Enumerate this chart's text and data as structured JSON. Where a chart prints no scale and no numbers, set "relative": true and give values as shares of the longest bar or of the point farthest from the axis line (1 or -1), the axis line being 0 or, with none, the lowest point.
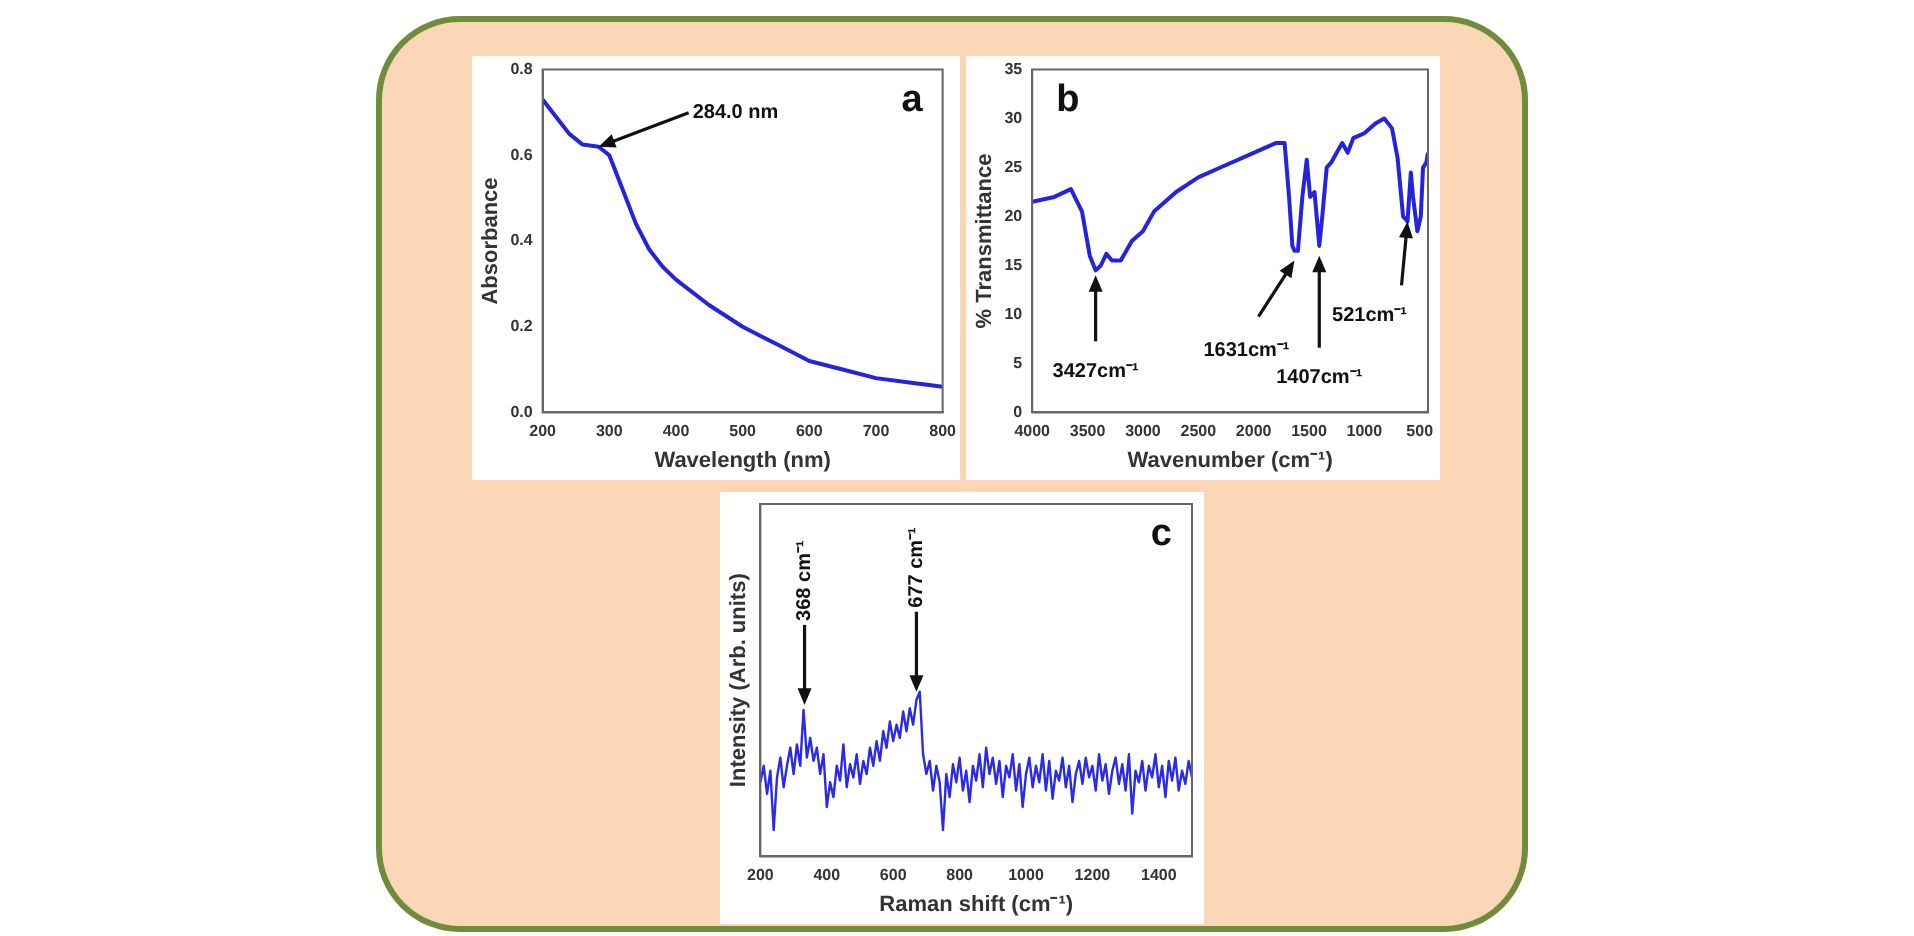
{
  "chart_data": [
    {
      "type": "line",
      "xlabel": "Wavelength (nm)",
      "ylabel": "Absorbance",
      "xlim": [
        200,
        800
      ],
      "xticks": [
        200,
        300,
        400,
        500,
        600,
        700,
        800
      ],
      "ylim": [
        0,
        0.8
      ],
      "yticks": [
        {
          "value": 0,
          "label": "0.0"
        },
        0.2,
        0.4,
        0.6,
        0.8
      ],
      "legend": false,
      "x": [
        200,
        220,
        240,
        260,
        284,
        300,
        320,
        340,
        360,
        380,
        400,
        450,
        500,
        550,
        600,
        650,
        700,
        750,
        800
      ],
      "series": [
        {
          "color": "#2424e0",
          "values": [
            0.73,
            0.69,
            0.65,
            0.625,
            0.62,
            0.6,
            0.52,
            0.44,
            0.38,
            0.34,
            0.31,
            0.25,
            0.2,
            0.16,
            0.12,
            0.1,
            0.08,
            0.07,
            0.06
          ]
        }
      ],
      "annotations": [
        "a",
        {
          "text": "284.0 nm",
          "x": 284,
          "y": 0.62
        }
      ]
    },
    {
      "type": "line",
      "xlabel": "Wavenumber (cm⁻¹)",
      "ylabel": "% Transmittance",
      "xlim": [
        4000,
        425
      ],
      "xticks": [
        4000,
        3500,
        3000,
        2500,
        2000,
        1500,
        1000,
        500
      ],
      "ylim": [
        0,
        35
      ],
      "yticks": [
        0,
        5,
        10,
        15,
        20,
        25,
        30,
        35
      ],
      "legend": false,
      "x": [
        4000,
        3800,
        3650,
        3550,
        3480,
        3427,
        3380,
        3330,
        3280,
        3200,
        3100,
        3000,
        2900,
        2800,
        2700,
        2500,
        2300,
        2000,
        1800,
        1720,
        1680,
        1650,
        1631,
        1600,
        1560,
        1520,
        1490,
        1450,
        1407,
        1380,
        1340,
        1300,
        1250,
        1200,
        1150,
        1100,
        1000,
        900,
        820,
        750,
        700,
        650,
        610,
        580,
        560,
        521,
        490,
        470,
        440,
        425
      ],
      "series": [
        {
          "color": "#2424e0",
          "values": [
            21.5,
            22,
            22.8,
            20.5,
            16,
            14.5,
            15,
            16.2,
            15.5,
            15.5,
            17.5,
            18.5,
            20.5,
            21.5,
            22.5,
            24,
            25,
            26.5,
            27.5,
            27.5,
            22,
            17,
            16.5,
            16.5,
            22,
            25.8,
            22,
            22.5,
            17,
            20,
            25,
            25.5,
            26.5,
            27.5,
            26.5,
            28,
            28.5,
            29.5,
            30,
            29,
            26,
            20,
            19.5,
            24.5,
            22,
            18.5,
            20,
            25,
            25.5,
            26.5
          ]
        }
      ],
      "annotations": [
        "b",
        {
          "text": "3427cm⁻¹",
          "x": 3427,
          "y": 14
        },
        {
          "text": "1631cm⁻¹",
          "x": 1631,
          "y": 15.5
        },
        {
          "text": "1407cm⁻¹",
          "x": 1407,
          "y": 16
        },
        {
          "text": "521cm⁻¹",
          "x": 610,
          "y": 19.5
        }
      ]
    },
    {
      "type": "line",
      "xlabel": "Raman shift (cm⁻¹)",
      "ylabel": "Intensity (Arb. units)",
      "relative": true,
      "xlim": [
        200,
        1500
      ],
      "xticks": [
        200,
        400,
        600,
        800,
        1000,
        1200,
        1400
      ],
      "legend": false,
      "x": [
        200,
        210,
        220,
        230,
        240,
        250,
        260,
        270,
        280,
        290,
        300,
        310,
        320,
        330,
        340,
        350,
        360,
        370,
        380,
        390,
        400,
        410,
        420,
        430,
        440,
        450,
        460,
        470,
        480,
        490,
        500,
        510,
        520,
        530,
        540,
        550,
        560,
        570,
        580,
        590,
        600,
        610,
        620,
        630,
        640,
        650,
        660,
        670,
        680,
        690,
        700,
        710,
        720,
        730,
        740,
        750,
        760,
        770,
        780,
        790,
        800,
        810,
        820,
        830,
        840,
        850,
        860,
        870,
        880,
        890,
        900,
        910,
        920,
        930,
        940,
        950,
        960,
        970,
        980,
        990,
        1000,
        1010,
        1020,
        1030,
        1040,
        1050,
        1060,
        1070,
        1080,
        1090,
        1100,
        1110,
        1120,
        1130,
        1140,
        1150,
        1160,
        1170,
        1180,
        1190,
        1200,
        1210,
        1220,
        1230,
        1240,
        1250,
        1260,
        1270,
        1280,
        1290,
        1300,
        1310,
        1320,
        1330,
        1340,
        1350,
        1360,
        1370,
        1380,
        1390,
        1400,
        1410,
        1420,
        1430,
        1440,
        1450,
        1460,
        1470,
        1480,
        1490,
        1500
      ],
      "series": [
        {
          "color": "#2a2aeb",
          "values": [
            0.45,
            0.55,
            0.38,
            0.52,
            0.16,
            0.48,
            0.6,
            0.42,
            0.55,
            0.66,
            0.5,
            0.68,
            0.55,
            0.89,
            0.6,
            0.72,
            0.58,
            0.66,
            0.5,
            0.62,
            0.3,
            0.45,
            0.36,
            0.55,
            0.46,
            0.68,
            0.42,
            0.56,
            0.48,
            0.62,
            0.44,
            0.58,
            0.5,
            0.66,
            0.55,
            0.7,
            0.58,
            0.76,
            0.66,
            0.82,
            0.7,
            0.8,
            0.72,
            0.88,
            0.76,
            0.9,
            0.8,
            0.95,
            1.0,
            0.62,
            0.5,
            0.58,
            0.4,
            0.55,
            0.45,
            0.16,
            0.5,
            0.36,
            0.56,
            0.45,
            0.6,
            0.4,
            0.52,
            0.33,
            0.55,
            0.46,
            0.62,
            0.42,
            0.66,
            0.5,
            0.6,
            0.44,
            0.58,
            0.36,
            0.55,
            0.48,
            0.62,
            0.4,
            0.56,
            0.3,
            0.5,
            0.6,
            0.42,
            0.55,
            0.45,
            0.62,
            0.4,
            0.58,
            0.35,
            0.52,
            0.46,
            0.6,
            0.42,
            0.55,
            0.33,
            0.5,
            0.58,
            0.44,
            0.6,
            0.48,
            0.55,
            0.4,
            0.62,
            0.46,
            0.56,
            0.38,
            0.52,
            0.6,
            0.44,
            0.56,
            0.4,
            0.62,
            0.26,
            0.52,
            0.45,
            0.58,
            0.4,
            0.55,
            0.48,
            0.62,
            0.42,
            0.55,
            0.36,
            0.58,
            0.46,
            0.6,
            0.4,
            0.52,
            0.44,
            0.58,
            0.48
          ]
        }
      ],
      "annotations": [
        "c",
        {
          "text": "368 cm⁻¹",
          "x": 333,
          "y": 0.92
        },
        {
          "text": "677 cm⁻¹",
          "x": 670,
          "y": 1.0
        }
      ]
    }
  ]
}
